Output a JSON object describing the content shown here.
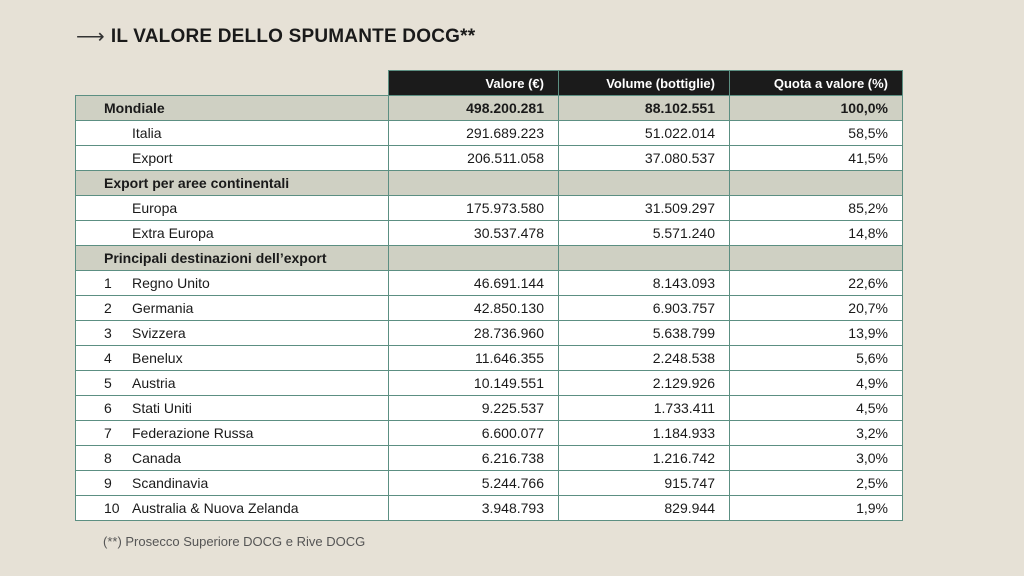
{
  "title": "IL VALORE DELLO SPUMANTE DOCG**",
  "columns": [
    "Valore (€)",
    "Volume (bottiglie)",
    "Quota a valore (%)"
  ],
  "rows": [
    {
      "type": "section",
      "label": "Mondiale",
      "valore": "498.200.281",
      "volume": "88.102.551",
      "quota": "100,0%"
    },
    {
      "type": "row",
      "rank": "",
      "label": "Italia",
      "valore": "291.689.223",
      "volume": "51.022.014",
      "quota": "58,5%"
    },
    {
      "type": "row",
      "rank": "",
      "label": "Export",
      "valore": "206.511.058",
      "volume": "37.080.537",
      "quota": "41,5%"
    },
    {
      "type": "section",
      "label": "Export per aree continentali",
      "valore": "",
      "volume": "",
      "quota": ""
    },
    {
      "type": "row",
      "rank": "",
      "label": "Europa",
      "valore": "175.973.580",
      "volume": "31.509.297",
      "quota": "85,2%"
    },
    {
      "type": "row",
      "rank": "",
      "label": "Extra Europa",
      "valore": "30.537.478",
      "volume": "5.571.240",
      "quota": "14,8%"
    },
    {
      "type": "section",
      "label": "Principali destinazioni dell’export",
      "valore": "",
      "volume": "",
      "quota": ""
    },
    {
      "type": "row",
      "rank": "1",
      "label": "Regno Unito",
      "valore": "46.691.144",
      "volume": "8.143.093",
      "quota": "22,6%"
    },
    {
      "type": "row",
      "rank": "2",
      "label": "Germania",
      "valore": "42.850.130",
      "volume": "6.903.757",
      "quota": "20,7%"
    },
    {
      "type": "row",
      "rank": "3",
      "label": "Svizzera",
      "valore": "28.736.960",
      "volume": "5.638.799",
      "quota": "13,9%"
    },
    {
      "type": "row",
      "rank": "4",
      "label": "Benelux",
      "valore": "11.646.355",
      "volume": "2.248.538",
      "quota": "5,6%"
    },
    {
      "type": "row",
      "rank": "5",
      "label": "Austria",
      "valore": "10.149.551",
      "volume": "2.129.926",
      "quota": "4,9%"
    },
    {
      "type": "row",
      "rank": "6",
      "label": "Stati Uniti",
      "valore": "9.225.537",
      "volume": "1.733.411",
      "quota": "4,5%"
    },
    {
      "type": "row",
      "rank": "7",
      "label": "Federazione Russa",
      "valore": "6.600.077",
      "volume": "1.184.933",
      "quota": "3,2%"
    },
    {
      "type": "row",
      "rank": "8",
      "label": "Canada",
      "valore": "6.216.738",
      "volume": "1.216.742",
      "quota": "3,0%"
    },
    {
      "type": "row",
      "rank": "9",
      "label": "Scandinavia",
      "valore": "5.244.766",
      "volume": "915.747",
      "quota": "2,5%"
    },
    {
      "type": "row",
      "rank": "10",
      "label": "Australia & Nuova Zelanda",
      "valore": "3.948.793",
      "volume": "829.944",
      "quota": "1,9%"
    }
  ],
  "footnote": "(**) Prosecco Superiore DOCG e Rive DOCG"
}
